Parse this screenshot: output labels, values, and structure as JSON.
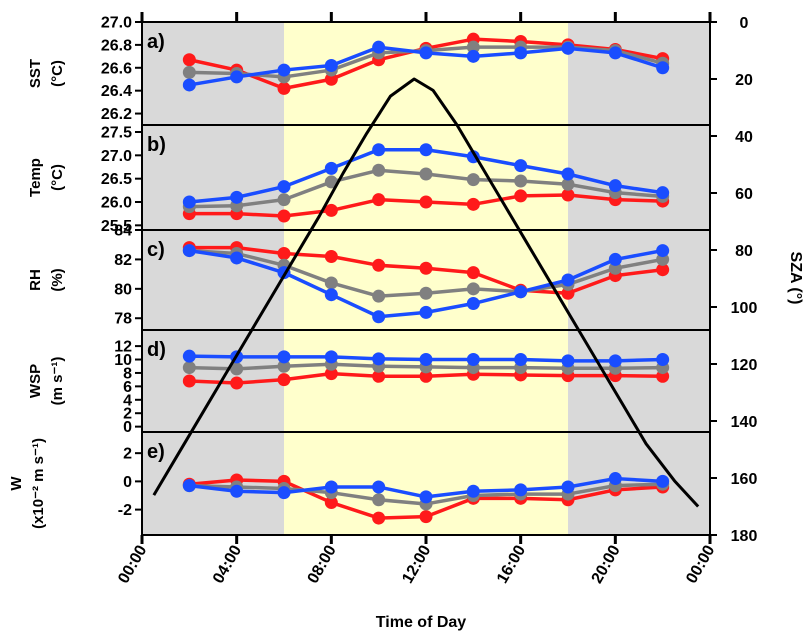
{
  "chart_data": {
    "type": "line",
    "xlabel": "Time of Day",
    "x_ticks": [
      "00:00",
      "04:00",
      "08:00",
      "12:00",
      "16:00",
      "20:00",
      "00:00"
    ],
    "xlim_hours": [
      0,
      24
    ],
    "shading": [
      {
        "from_hour": 0,
        "to_hour": 6,
        "color": "#d9d9d9"
      },
      {
        "from_hour": 6,
        "to_hour": 18,
        "color": "#ffffcc"
      },
      {
        "from_hour": 18,
        "to_hour": 24,
        "color": "#d9d9d9"
      }
    ],
    "series_colors": [
      "#ff1a1a",
      "#808080",
      "#1a4dff"
    ],
    "sza": {
      "ylabel": "SZA (°)",
      "ylim": [
        180,
        0
      ],
      "ticks": [
        "0",
        "20",
        "40",
        "60",
        "80",
        "100",
        "120",
        "140",
        "160",
        "180"
      ],
      "color": "#000000",
      "x": [
        0.5,
        1.5,
        2.5,
        3.5,
        4.5,
        5.5,
        6.5,
        7.5,
        8.5,
        9.5,
        10.5,
        11.5,
        12.3,
        13.3,
        14.3,
        15.3,
        16.3,
        17.3,
        18.3,
        19.3,
        20.3,
        21.3,
        22.5,
        23.5
      ],
      "y": [
        166,
        152,
        138,
        124,
        110,
        96,
        82,
        68,
        53,
        39,
        26,
        20,
        24,
        36,
        50,
        64,
        78,
        92,
        106,
        120,
        134,
        148,
        161,
        170
      ]
    },
    "panels": [
      {
        "label": "a)",
        "ylabel": [
          "SST",
          "(°C)"
        ],
        "ylim": [
          26.1,
          27.0
        ],
        "ticks": [
          "26.2",
          "26.4",
          "26.6",
          "26.8",
          "27.0"
        ],
        "x": [
          2,
          4,
          6,
          8,
          10,
          12,
          14,
          16,
          18,
          20,
          22
        ],
        "series": [
          {
            "values": [
              26.67,
              26.58,
              26.42,
              26.5,
              26.67,
              26.77,
              26.85,
              26.83,
              26.8,
              26.76,
              26.68
            ]
          },
          {
            "values": [
              26.56,
              26.55,
              26.52,
              26.58,
              26.73,
              26.75,
              26.78,
              26.78,
              26.78,
              26.75,
              26.64
            ]
          },
          {
            "values": [
              26.45,
              26.52,
              26.58,
              26.62,
              26.78,
              26.73,
              26.7,
              26.73,
              26.77,
              26.73,
              26.6
            ]
          }
        ]
      },
      {
        "label": "b)",
        "ylabel": [
          "Temp",
          "(°C)"
        ],
        "ylim": [
          25.4,
          27.65
        ],
        "ticks": [
          "25.5",
          "26.0",
          "26.5",
          "27.0",
          "27.5"
        ],
        "x": [
          2,
          4,
          6,
          8,
          10,
          12,
          14,
          16,
          18,
          20,
          22
        ],
        "series": [
          {
            "values": [
              25.75,
              25.75,
              25.7,
              25.82,
              26.05,
              26.0,
              25.95,
              26.13,
              26.15,
              26.05,
              26.02
            ]
          },
          {
            "values": [
              25.9,
              25.92,
              26.05,
              26.43,
              26.68,
              26.6,
              26.48,
              26.45,
              26.38,
              26.2,
              26.12
            ]
          },
          {
            "values": [
              26.0,
              26.1,
              26.33,
              26.72,
              27.12,
              27.12,
              26.97,
              26.78,
              26.6,
              26.35,
              26.2
            ]
          }
        ]
      },
      {
        "label": "c)",
        "ylabel": [
          "RH",
          "(%)"
        ],
        "ylim": [
          77.2,
          84.0
        ],
        "ticks": [
          "78",
          "80",
          "82",
          "84"
        ],
        "x": [
          2,
          4,
          6,
          8,
          10,
          12,
          14,
          16,
          18,
          20,
          22
        ],
        "series": [
          {
            "values": [
              82.8,
              82.8,
              82.4,
              82.2,
              81.6,
              81.4,
              81.1,
              79.9,
              79.7,
              80.9,
              81.3
            ]
          },
          {
            "values": [
              82.6,
              82.4,
              81.6,
              80.4,
              79.5,
              79.7,
              80.0,
              79.8,
              80.3,
              81.4,
              82.0
            ]
          },
          {
            "values": [
              82.6,
              82.1,
              81.1,
              79.6,
              78.1,
              78.4,
              79.0,
              79.8,
              80.6,
              82.0,
              82.6
            ]
          }
        ]
      },
      {
        "label": "d)",
        "ylabel": [
          "WSP",
          "(m s⁻¹)"
        ],
        "ylim": [
          -0.8,
          14.4
        ],
        "ticks": [
          "0",
          "2",
          "4",
          "6",
          "8",
          "10",
          "12"
        ],
        "x": [
          2,
          4,
          6,
          8,
          10,
          12,
          14,
          16,
          18,
          20,
          22
        ],
        "series": [
          {
            "values": [
              6.8,
              6.5,
              7.0,
              7.9,
              7.5,
              7.5,
              7.8,
              7.7,
              7.6,
              7.6,
              7.5
            ]
          },
          {
            "values": [
              8.8,
              8.6,
              9.0,
              9.3,
              9.0,
              8.9,
              8.8,
              8.8,
              8.7,
              8.7,
              8.8
            ]
          },
          {
            "values": [
              10.5,
              10.4,
              10.4,
              10.4,
              10.1,
              10.0,
              10.0,
              10.0,
              9.8,
              9.8,
              10.0
            ]
          }
        ]
      },
      {
        "label": "e)",
        "ylabel": [
          "W",
          "(x10⁻² m s⁻¹)"
        ],
        "ylim": [
          -3.8,
          3.5
        ],
        "ticks": [
          "-2",
          "0",
          "2"
        ],
        "x": [
          2,
          4,
          6,
          8,
          10,
          12,
          14,
          16,
          18,
          20,
          22
        ],
        "series": [
          {
            "values": [
              -0.2,
              0.1,
              0.0,
              -1.5,
              -2.6,
              -2.5,
              -1.2,
              -1.2,
              -1.3,
              -0.6,
              -0.4
            ]
          },
          {
            "values": [
              -0.3,
              -0.4,
              -0.5,
              -0.8,
              -1.3,
              -1.6,
              -1.0,
              -0.9,
              -0.9,
              -0.3,
              -0.2
            ]
          },
          {
            "values": [
              -0.3,
              -0.7,
              -0.8,
              -0.4,
              -0.4,
              -1.1,
              -0.7,
              -0.6,
              -0.4,
              0.2,
              0.0
            ]
          }
        ]
      }
    ]
  }
}
